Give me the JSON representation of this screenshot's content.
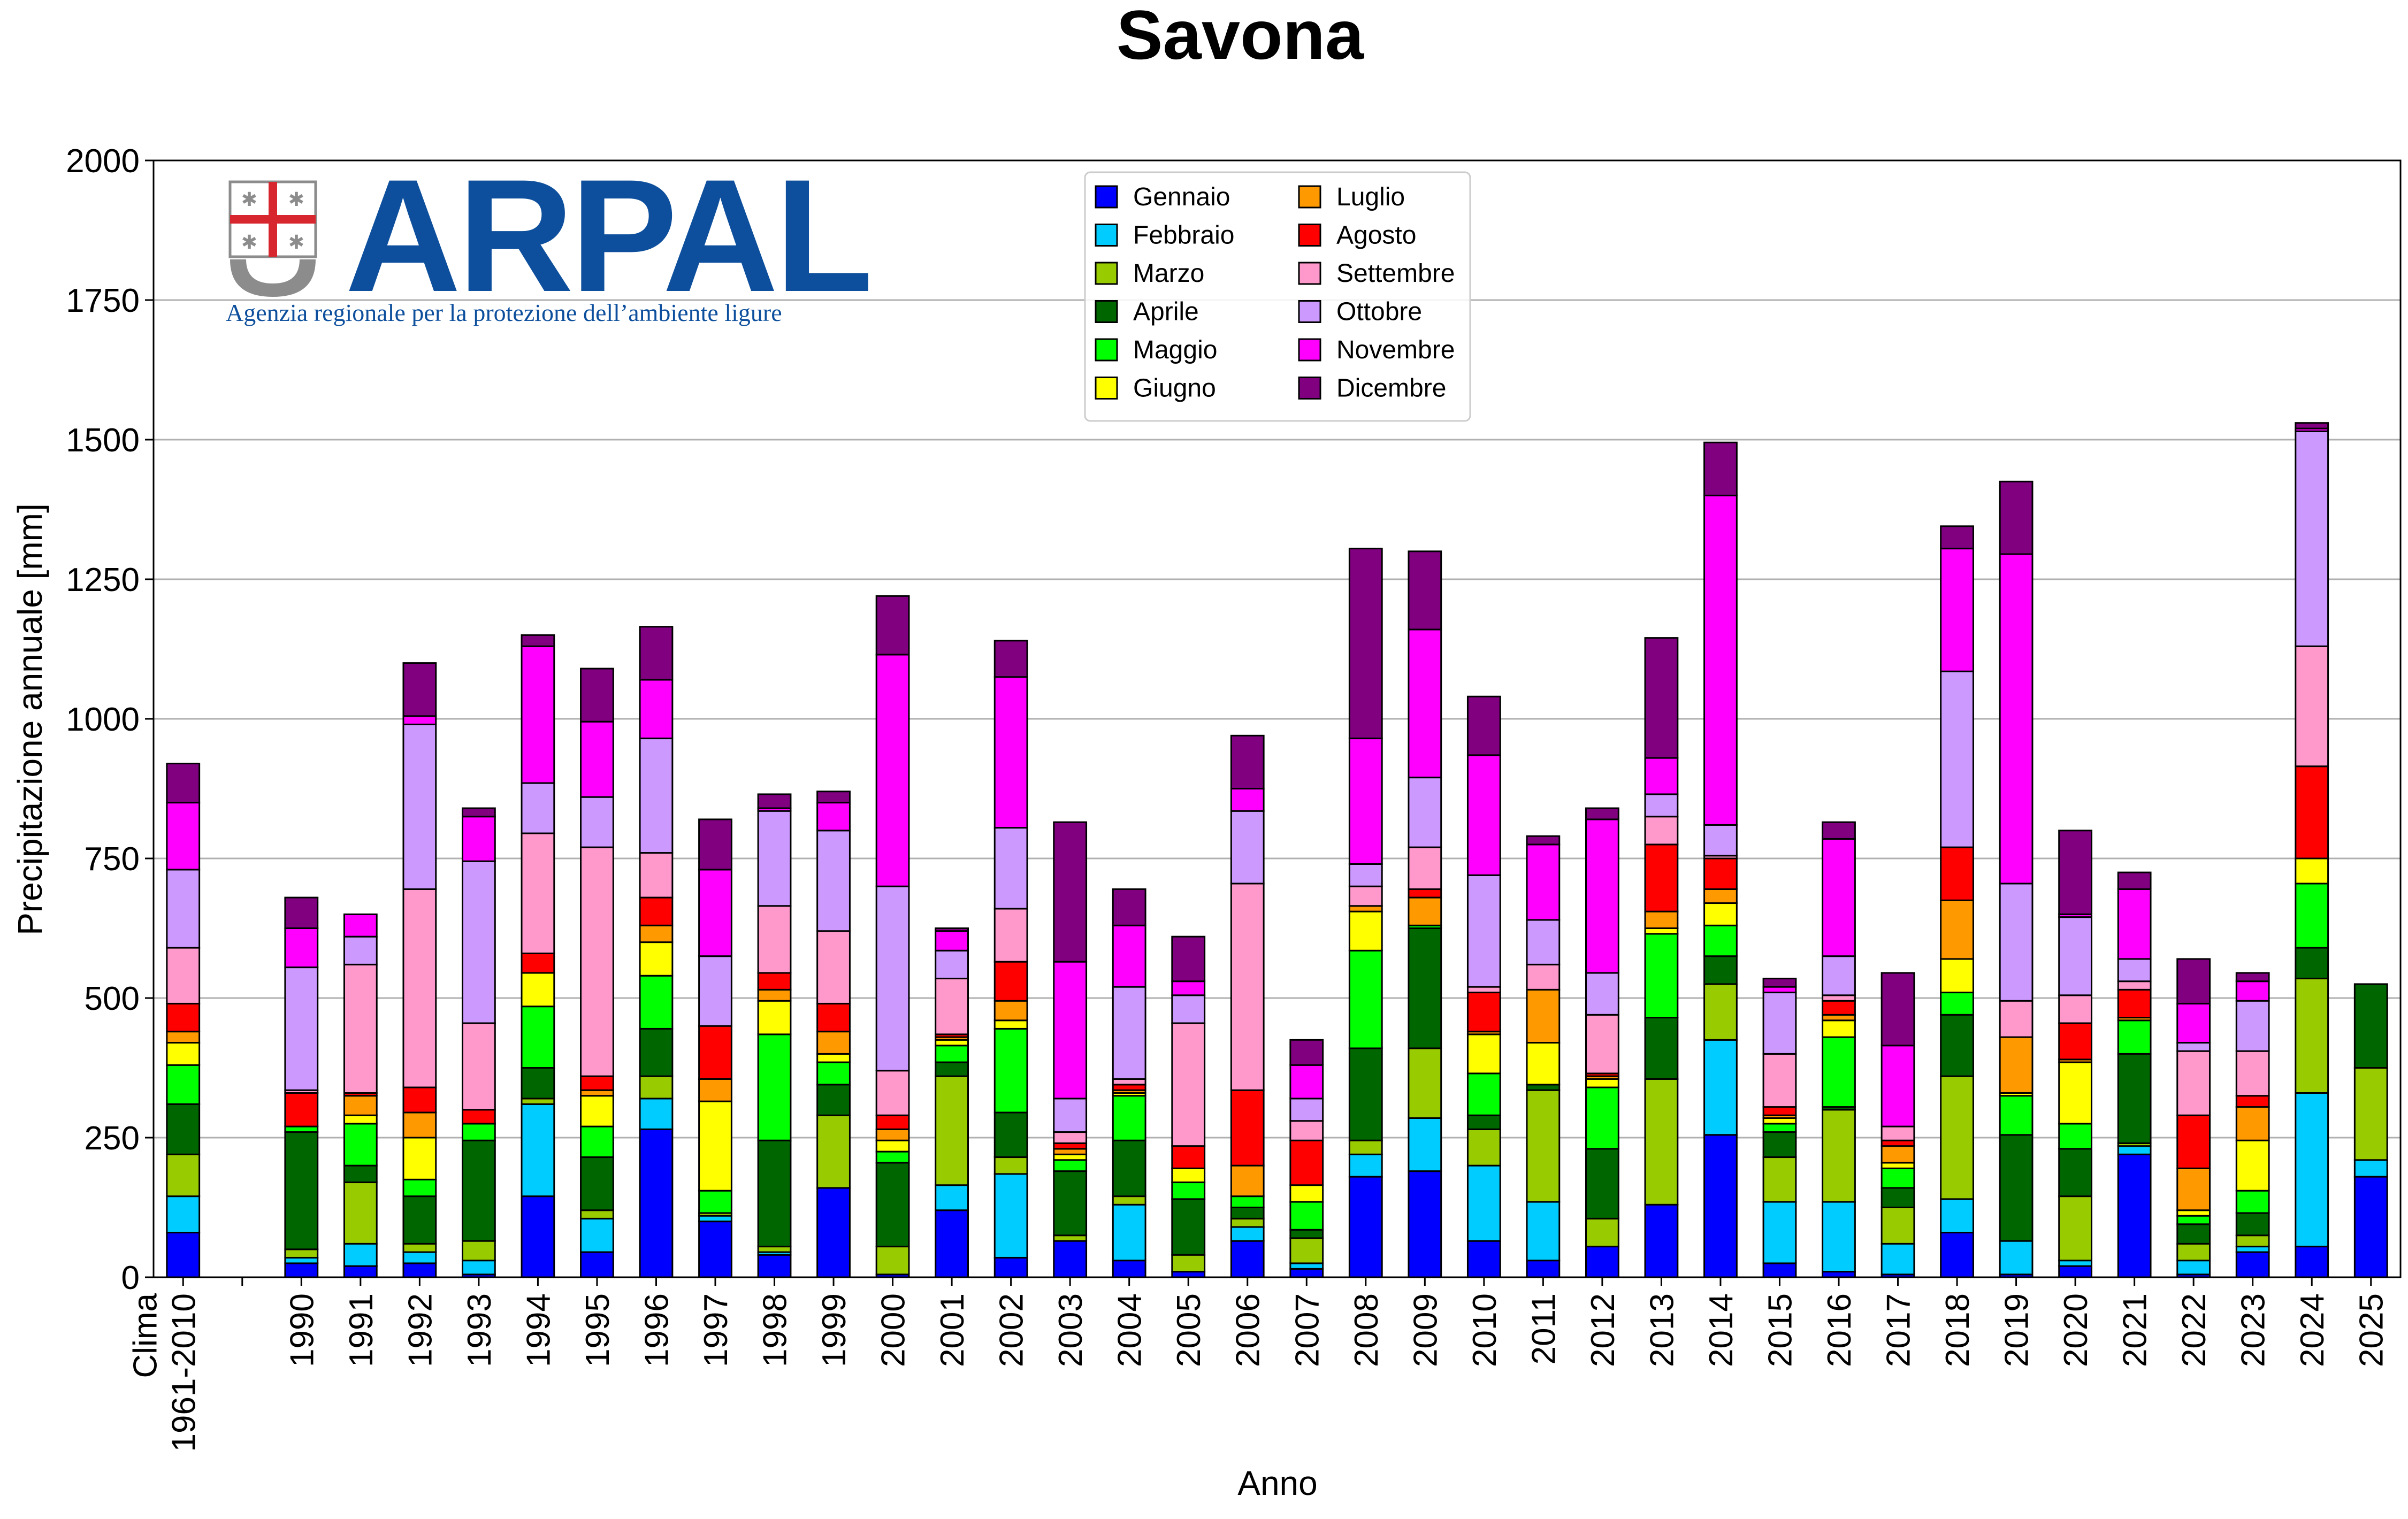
{
  "logo": {
    "name": "ARPAL",
    "subtitle": "Agenzia regionale per la protezione dell’ambiente ligure"
  },
  "chart_data": {
    "type": "bar",
    "stacked": true,
    "title": "Savona",
    "xlabel": "Anno",
    "ylabel": "Precipitazione annuale [mm]",
    "ylim": [
      0,
      2000
    ],
    "yticks": [
      0,
      250,
      500,
      750,
      1000,
      1250,
      1500,
      1750,
      2000
    ],
    "grid": "horizontal",
    "legend_position": "top-center",
    "categories": [
      "Clima\n1961-2010",
      "",
      "1990",
      "1991",
      "1992",
      "1993",
      "1994",
      "1995",
      "1996",
      "1997",
      "1998",
      "1999",
      "2000",
      "2001",
      "2002",
      "2003",
      "2004",
      "2005",
      "2006",
      "2007",
      "2008",
      "2009",
      "2010",
      "2011",
      "2012",
      "2013",
      "2014",
      "2015",
      "2016",
      "2017",
      "2018",
      "2019",
      "2020",
      "2021",
      "2022",
      "2023",
      "2024",
      "2025"
    ],
    "series": [
      {
        "name": "Gennaio",
        "color": "#0000ff",
        "values": [
          80,
          0,
          25,
          20,
          25,
          5,
          145,
          45,
          265,
          100,
          40,
          160,
          5,
          120,
          35,
          65,
          30,
          10,
          65,
          15,
          180,
          190,
          65,
          30,
          55,
          130,
          255,
          25,
          10,
          5,
          80,
          5,
          20,
          220,
          5,
          45,
          55,
          180
        ]
      },
      {
        "name": "Febbraio",
        "color": "#00ccff",
        "values": [
          65,
          0,
          10,
          40,
          20,
          25,
          165,
          60,
          55,
          10,
          5,
          0,
          0,
          45,
          150,
          0,
          100,
          0,
          25,
          10,
          40,
          95,
          135,
          105,
          0,
          0,
          170,
          110,
          125,
          55,
          60,
          60,
          10,
          15,
          25,
          10,
          275,
          30
        ]
      },
      {
        "name": "Marzo",
        "color": "#99cc00",
        "values": [
          75,
          0,
          15,
          110,
          15,
          35,
          10,
          15,
          40,
          5,
          10,
          130,
          50,
          195,
          30,
          10,
          15,
          30,
          15,
          45,
          25,
          125,
          65,
          200,
          50,
          225,
          100,
          80,
          165,
          65,
          220,
          0,
          115,
          5,
          30,
          20,
          205,
          165
        ]
      },
      {
        "name": "Aprile",
        "color": "#006600",
        "values": [
          90,
          0,
          210,
          30,
          85,
          180,
          55,
          95,
          85,
          0,
          190,
          55,
          150,
          25,
          80,
          115,
          100,
          100,
          20,
          15,
          165,
          215,
          25,
          10,
          125,
          110,
          50,
          45,
          5,
          35,
          110,
          190,
          85,
          160,
          35,
          40,
          55,
          150
        ]
      },
      {
        "name": "Maggio",
        "color": "#00ff00",
        "values": [
          70,
          0,
          10,
          75,
          30,
          30,
          110,
          55,
          95,
          40,
          190,
          40,
          20,
          30,
          150,
          20,
          80,
          30,
          20,
          50,
          175,
          5,
          75,
          0,
          110,
          150,
          55,
          15,
          125,
          35,
          40,
          70,
          45,
          60,
          15,
          40,
          115,
          0
        ]
      },
      {
        "name": "Giugno",
        "color": "#ffff00",
        "values": [
          40,
          0,
          0,
          15,
          75,
          0,
          60,
          55,
          60,
          160,
          60,
          15,
          20,
          10,
          15,
          10,
          5,
          25,
          0,
          30,
          70,
          0,
          70,
          75,
          15,
          10,
          40,
          10,
          30,
          10,
          60,
          5,
          110,
          0,
          10,
          90,
          45,
          0
        ]
      },
      {
        "name": "Luglio",
        "color": "#ff9900",
        "values": [
          20,
          0,
          0,
          35,
          45,
          0,
          0,
          10,
          30,
          40,
          20,
          40,
          20,
          5,
          35,
          10,
          5,
          0,
          55,
          0,
          10,
          50,
          5,
          95,
          5,
          30,
          25,
          5,
          10,
          30,
          105,
          100,
          5,
          5,
          75,
          60,
          0,
          0
        ]
      },
      {
        "name": "Agosto",
        "color": "#ff0000",
        "values": [
          50,
          0,
          60,
          5,
          45,
          25,
          35,
          25,
          50,
          95,
          30,
          50,
          25,
          5,
          70,
          10,
          10,
          40,
          135,
          80,
          0,
          15,
          70,
          0,
          5,
          120,
          55,
          15,
          25,
          10,
          95,
          0,
          65,
          50,
          95,
          20,
          165,
          0
        ]
      },
      {
        "name": "Settembre",
        "color": "#ff99cc",
        "values": [
          100,
          0,
          5,
          230,
          355,
          155,
          215,
          410,
          80,
          0,
          120,
          130,
          80,
          100,
          95,
          20,
          10,
          220,
          370,
          35,
          35,
          75,
          10,
          45,
          105,
          50,
          5,
          95,
          10,
          25,
          0,
          65,
          50,
          15,
          115,
          80,
          215,
          0
        ]
      },
      {
        "name": "Ottobre",
        "color": "#cc99ff",
        "values": [
          140,
          0,
          220,
          50,
          295,
          290,
          90,
          90,
          205,
          125,
          170,
          180,
          330,
          50,
          145,
          60,
          165,
          50,
          130,
          40,
          40,
          125,
          200,
          80,
          75,
          40,
          55,
          110,
          70,
          0,
          315,
          210,
          140,
          40,
          15,
          90,
          385,
          0
        ]
      },
      {
        "name": "Novembre",
        "color": "#ff00ff",
        "values": [
          120,
          0,
          70,
          40,
          15,
          80,
          245,
          135,
          105,
          155,
          5,
          50,
          415,
          35,
          270,
          245,
          110,
          25,
          40,
          60,
          225,
          265,
          215,
          135,
          275,
          65,
          590,
          10,
          210,
          145,
          220,
          590,
          5,
          125,
          70,
          35,
          5,
          0
        ]
      },
      {
        "name": "Dicembre",
        "color": "#800080",
        "values": [
          70,
          0,
          55,
          0,
          95,
          15,
          20,
          95,
          95,
          90,
          25,
          20,
          105,
          5,
          65,
          250,
          65,
          80,
          95,
          45,
          340,
          140,
          105,
          15,
          20,
          215,
          95,
          15,
          30,
          130,
          40,
          130,
          150,
          30,
          80,
          15,
          10,
          0
        ]
      }
    ]
  }
}
